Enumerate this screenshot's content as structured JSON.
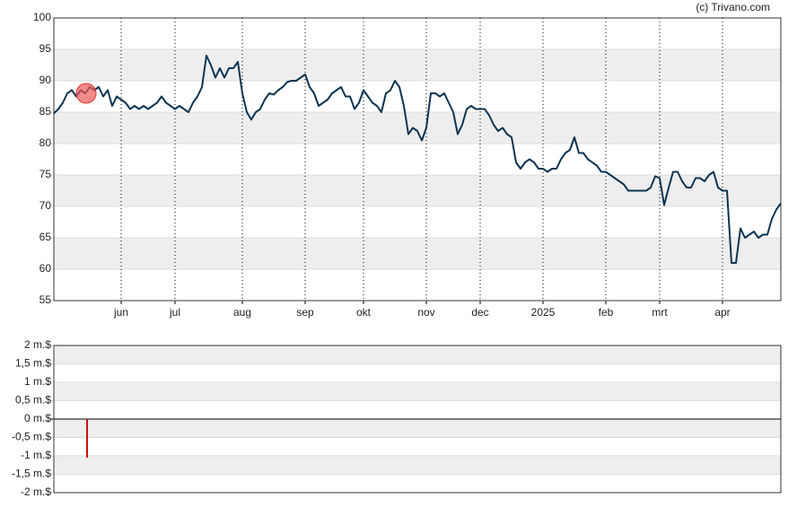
{
  "credit": "(c) Trivano.com",
  "chart_data": [
    {
      "type": "line",
      "categories": [
        null,
        null,
        null,
        null,
        null,
        null,
        null,
        null,
        null,
        null,
        null,
        null,
        null,
        null,
        null,
        "jun",
        null,
        null,
        null,
        null,
        null,
        null,
        null,
        null,
        null,
        null,
        null,
        "jul",
        null,
        null,
        null,
        null,
        null,
        null,
        null,
        null,
        null,
        null,
        null,
        null,
        null,
        null,
        "aug",
        null,
        null,
        null,
        null,
        null,
        null,
        null,
        null,
        null,
        null,
        null,
        null,
        null,
        "sep",
        null,
        null,
        null,
        null,
        null,
        null,
        null,
        null,
        null,
        null,
        null,
        null,
        "okt",
        null,
        null,
        null,
        null,
        null,
        null,
        null,
        null,
        null,
        null,
        null,
        null,
        null,
        "nov",
        null,
        null,
        null,
        null,
        null,
        null,
        null,
        null,
        null,
        null,
        null,
        "dec",
        null,
        null,
        null,
        null,
        null,
        null,
        null,
        null,
        null,
        null,
        null,
        null,
        null,
        "2025",
        null,
        null,
        null,
        null,
        null,
        null,
        null,
        null,
        null,
        null,
        null,
        null,
        null,
        "feb",
        null,
        null,
        null,
        null,
        null,
        null,
        null,
        null,
        null,
        null,
        null,
        "mrt",
        null,
        null,
        null,
        null,
        null,
        null,
        null,
        null,
        null,
        null,
        null,
        null,
        null,
        "apr",
        null,
        null,
        null,
        null,
        null,
        null,
        null,
        null,
        null,
        null,
        null,
        null,
        null
      ],
      "values": [
        84.8,
        85.5,
        86.5,
        88,
        88.5,
        87.5,
        88.5,
        88,
        89,
        88.5,
        89,
        87.5,
        88.5,
        86,
        87.5,
        87,
        86.5,
        85.5,
        86,
        85.5,
        86,
        85.5,
        86,
        86.5,
        87.5,
        86.5,
        86,
        85.5,
        86,
        85.5,
        85,
        86.5,
        87.5,
        89,
        94,
        92.5,
        90.5,
        92,
        90.5,
        92,
        92,
        93,
        88,
        85,
        83.8,
        85,
        85.5,
        87,
        88,
        87.8,
        88.5,
        89,
        89.8,
        90,
        90,
        90.5,
        91,
        89,
        88,
        86,
        86.5,
        87,
        88,
        88.5,
        89,
        87.5,
        87.5,
        85.5,
        86.5,
        88.5,
        87.5,
        86.5,
        86,
        85,
        88,
        88.5,
        90,
        89,
        86,
        81.5,
        82.5,
        82,
        80.5,
        82.5,
        88,
        88,
        87.5,
        88,
        86.5,
        85,
        81.5,
        83,
        85.5,
        86,
        85.5,
        85.5,
        85.5,
        84.5,
        83,
        82,
        82.5,
        81.5,
        81,
        77,
        76,
        77,
        77.5,
        77,
        76,
        76,
        75.5,
        76,
        76,
        77.5,
        78.5,
        79,
        81,
        78.5,
        78.5,
        77.5,
        77,
        76.5,
        75.5,
        75.5,
        75,
        74.5,
        74,
        73.5,
        72.5,
        72.5,
        72.5,
        72.5,
        72.5,
        73,
        74.8,
        74.5,
        70.2,
        73,
        75.5,
        75.5,
        74,
        73,
        73,
        74.5,
        74.5,
        74,
        75,
        75.5,
        73,
        72.5,
        72.5,
        61,
        61,
        66.5,
        65,
        65.5,
        66,
        65,
        65.5,
        65.5,
        68,
        69.5,
        70.5
      ],
      "color": "#0d3552",
      "ylim": [
        55,
        100
      ],
      "yticks": [
        55,
        60,
        65,
        70,
        75,
        80,
        85,
        90,
        95,
        100
      ],
      "grid": "bands"
    },
    {
      "type": "bar",
      "values": [
        null,
        null,
        null,
        null,
        null,
        null,
        null,
        -1.05,
        null,
        null,
        null,
        null,
        null,
        null,
        null,
        null,
        null,
        null,
        null,
        null,
        null,
        null,
        null,
        null,
        null,
        null,
        null,
        null,
        null,
        null,
        null,
        null,
        null,
        null,
        null,
        null,
        null,
        null,
        null,
        null,
        null,
        null,
        null,
        null,
        null,
        null,
        null,
        null,
        null,
        null,
        null,
        null,
        null,
        null,
        null,
        null,
        null,
        null,
        null,
        null,
        null,
        null,
        null,
        null,
        null,
        null,
        null,
        null,
        null,
        null,
        null,
        null,
        null,
        null,
        null,
        null,
        null,
        null,
        null,
        null,
        null,
        null,
        null,
        null,
        null,
        null,
        null,
        null,
        null,
        null,
        null,
        null,
        null,
        null,
        null,
        null,
        null,
        null,
        null,
        null,
        null,
        null,
        null,
        null,
        null,
        null,
        null,
        null,
        null,
        null,
        null,
        null,
        null,
        null,
        null,
        null,
        null,
        null,
        null,
        null,
        null,
        null,
        null,
        null,
        null,
        null,
        null,
        null,
        null,
        null,
        null,
        null,
        null,
        null,
        null,
        null,
        null,
        null,
        null,
        null,
        null,
        null,
        null,
        null,
        null,
        null,
        null,
        null,
        null,
        null,
        null,
        null,
        null,
        null,
        null,
        null,
        null,
        null,
        null,
        null,
        null,
        null,
        null
      ],
      "color": "#cc1111",
      "ylim": [
        -2,
        2
      ],
      "yticks": [
        {
          "value": -2,
          "label": "-2 m.$"
        },
        {
          "value": -1.5,
          "label": "-1,5 m.$"
        },
        {
          "value": -1,
          "label": "-1 m.$"
        },
        {
          "value": -0.5,
          "label": "-0,5 m.$"
        },
        {
          "value": 0,
          "label": "0 m.$"
        },
        {
          "value": 0.5,
          "label": "0,5 m.$"
        },
        {
          "value": 1,
          "label": "1 m.$"
        },
        {
          "value": 1.5,
          "label": "1,5 m.$"
        },
        {
          "value": 2,
          "label": "2 m.$"
        }
      ],
      "grid": "bands"
    }
  ]
}
